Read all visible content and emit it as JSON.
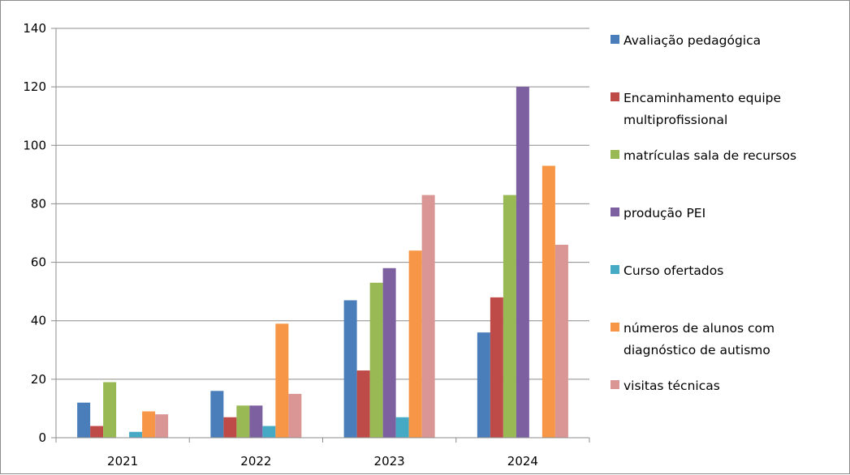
{
  "chart_data": {
    "type": "bar",
    "title": "",
    "xlabel": "",
    "ylabel": "",
    "categories": [
      "2021",
      "2022",
      "2023",
      "2024"
    ],
    "ylim": [
      0,
      140
    ],
    "yticks": [
      0,
      20,
      40,
      60,
      80,
      100,
      120,
      140
    ],
    "grid": true,
    "legend_position": "right",
    "series": [
      {
        "name": "Avaliação pedagógica",
        "legend_lines": [
          "Avaliação pedagógica"
        ],
        "color": "#4a7ebb",
        "values": [
          12,
          16,
          47,
          36
        ]
      },
      {
        "name": "Encaminhamento equipe multiprofissional",
        "legend_lines": [
          "Encaminhamento equipe",
          "multiprofissional"
        ],
        "color": "#be4b48",
        "values": [
          4,
          7,
          23,
          48
        ]
      },
      {
        "name": "matrículas sala de recursos",
        "legend_lines": [
          "matrículas sala de recursos"
        ],
        "color": "#98b954",
        "values": [
          19,
          11,
          53,
          83
        ]
      },
      {
        "name": "produção PEI",
        "legend_lines": [
          "produção PEI"
        ],
        "color": "#7d60a0",
        "values": [
          0,
          11,
          58,
          120
        ]
      },
      {
        "name": "Curso ofertados",
        "legend_lines": [
          "Curso ofertados"
        ],
        "color": "#46aac5",
        "values": [
          2,
          4,
          7,
          0
        ]
      },
      {
        "name": "números de alunos com diagnóstico de autismo",
        "legend_lines": [
          "números de alunos com",
          "diagnóstico de autismo"
        ],
        "color": "#f79646",
        "values": [
          9,
          39,
          64,
          93
        ]
      },
      {
        "name": "visitas técnicas",
        "legend_lines": [
          "visitas técnicas"
        ],
        "color": "#d99694",
        "values": [
          8,
          15,
          83,
          66
        ]
      }
    ]
  }
}
